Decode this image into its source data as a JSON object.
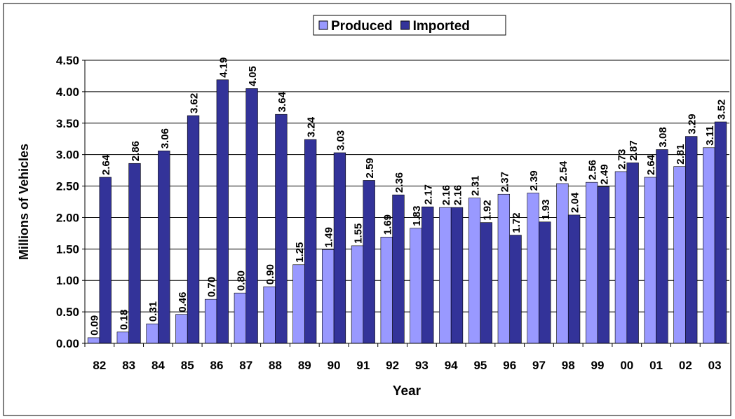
{
  "chart_data": {
    "type": "bar",
    "x_label": "Year",
    "y_label": "Millions of Vehicles",
    "categories": [
      "82",
      "83",
      "84",
      "85",
      "86",
      "87",
      "88",
      "89",
      "90",
      "91",
      "92",
      "93",
      "94",
      "95",
      "96",
      "97",
      "98",
      "99",
      "00",
      "01",
      "02",
      "03"
    ],
    "series": [
      {
        "name": "Produced",
        "color": "#9999ff",
        "values": [
          0.09,
          0.18,
          0.31,
          0.46,
          0.7,
          0.8,
          0.9,
          1.25,
          1.49,
          1.55,
          1.69,
          1.83,
          2.16,
          2.31,
          2.37,
          2.39,
          2.54,
          2.56,
          2.73,
          2.64,
          2.81,
          3.11
        ],
        "value_labels": [
          "0.09",
          "0.18",
          "0.31",
          "0.46",
          "0.70",
          "0.80",
          "0.90",
          "1.25",
          "1.49",
          "1.55",
          "1.69",
          "1.83",
          "2.16",
          "2.31",
          "2.37",
          "2.39",
          "2.54",
          "2.56",
          "2.73",
          "2.64",
          "2.81",
          "3.11"
        ]
      },
      {
        "name": "Imported",
        "color": "#333399",
        "values": [
          2.64,
          2.86,
          3.06,
          3.62,
          4.19,
          4.05,
          3.64,
          3.24,
          3.03,
          2.59,
          2.36,
          2.17,
          2.16,
          1.92,
          1.72,
          1.93,
          2.04,
          2.49,
          2.87,
          3.08,
          3.29,
          3.52
        ],
        "value_labels": [
          "2.64",
          "2.86",
          "3.06",
          "3.62",
          "4.19",
          "4.05",
          "3.64",
          "3.24",
          "3.03",
          "2.59",
          "2.36",
          "2.17",
          "2.16",
          "1.92",
          "1.72",
          "1.93",
          "2.04",
          "2.49",
          "2.87",
          "3.08",
          "3.29",
          "3.52"
        ]
      }
    ],
    "ylim": [
      0,
      4.5
    ],
    "yticks": [
      {
        "value": 0,
        "label": "0.00"
      },
      {
        "value": 0.5,
        "label": "0.50"
      },
      {
        "value": 1,
        "label": "1.00"
      },
      {
        "value": 1.5,
        "label": "1.50"
      },
      {
        "value": 2,
        "label": "2.00"
      },
      {
        "value": 2.5,
        "label": "2.50"
      },
      {
        "value": 3,
        "label": "3.00"
      },
      {
        "value": 3.5,
        "label": "3.50"
      },
      {
        "value": 4,
        "label": "4.00"
      },
      {
        "value": 4.5,
        "label": "4.50"
      }
    ],
    "grid": true,
    "legend": "top"
  }
}
